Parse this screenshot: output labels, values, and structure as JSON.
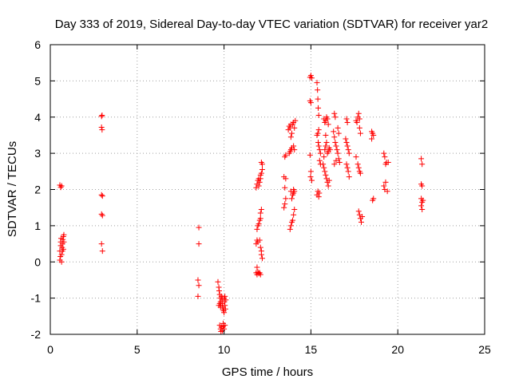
{
  "chart_data": {
    "type": "scatter",
    "title": "Day 333 of 2019, Sidereal Day-to-day VTEC variation (SDTVAR) for receiver yar2",
    "xlabel": "GPS time / hours",
    "ylabel": "SDTVAR / TECUs",
    "xlim": [
      0,
      25
    ],
    "ylim": [
      -2,
      6
    ],
    "xticks": [
      "0",
      "5",
      "10",
      "15",
      "20",
      "25"
    ],
    "yticks": [
      "-2",
      "-1",
      "0",
      "1",
      "2",
      "3",
      "4",
      "5",
      "6"
    ],
    "grid": true,
    "marker": "+",
    "color": "#ff0000",
    "series": [
      {
        "name": "SDTVAR",
        "points": [
          [
            0.55,
            2.12
          ],
          [
            0.6,
            2.06
          ],
          [
            0.65,
            2.1
          ],
          [
            0.55,
            0.05
          ],
          [
            0.55,
            0.3
          ],
          [
            0.6,
            0.45
          ],
          [
            0.6,
            0.55
          ],
          [
            0.62,
            0.65
          ],
          [
            0.65,
            0.0
          ],
          [
            0.65,
            0.2
          ],
          [
            0.68,
            0.4
          ],
          [
            0.7,
            0.5
          ],
          [
            0.72,
            0.62
          ],
          [
            0.75,
            0.7
          ],
          [
            0.75,
            0.35
          ],
          [
            0.78,
            0.55
          ],
          [
            0.78,
            0.75
          ],
          [
            0.58,
            0.15
          ],
          [
            0.7,
            0.3
          ],
          [
            2.95,
            4.02
          ],
          [
            2.98,
            4.05
          ],
          [
            2.95,
            3.72
          ],
          [
            2.98,
            3.65
          ],
          [
            2.95,
            1.85
          ],
          [
            3.0,
            1.82
          ],
          [
            2.95,
            1.32
          ],
          [
            3.0,
            1.28
          ],
          [
            2.95,
            0.5
          ],
          [
            3.0,
            0.3
          ],
          [
            8.55,
            0.95
          ],
          [
            8.55,
            0.5
          ],
          [
            8.5,
            -0.5
          ],
          [
            8.55,
            -0.65
          ],
          [
            8.5,
            -0.95
          ],
          [
            9.65,
            -0.55
          ],
          [
            9.7,
            -0.7
          ],
          [
            9.72,
            -0.8
          ],
          [
            9.75,
            -0.9
          ],
          [
            9.78,
            -1.0
          ],
          [
            9.8,
            -1.1
          ],
          [
            9.82,
            -1.2
          ],
          [
            9.85,
            -0.95
          ],
          [
            9.88,
            -1.05
          ],
          [
            9.9,
            -1.15
          ],
          [
            9.92,
            -1.25
          ],
          [
            9.95,
            -1.3
          ],
          [
            9.98,
            -1.35
          ],
          [
            10.0,
            -1.0
          ],
          [
            10.02,
            -1.1
          ],
          [
            10.05,
            -1.2
          ],
          [
            10.08,
            -1.3
          ],
          [
            9.75,
            -1.15
          ],
          [
            9.8,
            -1.25
          ],
          [
            9.9,
            -1.0
          ],
          [
            10.0,
            -1.4
          ],
          [
            10.05,
            -0.95
          ],
          [
            10.1,
            -1.05
          ],
          [
            9.7,
            -1.2
          ],
          [
            9.75,
            -1.75
          ],
          [
            9.8,
            -1.85
          ],
          [
            9.85,
            -1.8
          ],
          [
            9.9,
            -1.9
          ],
          [
            9.95,
            -1.78
          ],
          [
            10.0,
            -1.85
          ],
          [
            10.05,
            -1.75
          ],
          [
            9.82,
            -1.92
          ],
          [
            9.95,
            -1.7
          ],
          [
            11.85,
            -0.3
          ],
          [
            11.9,
            -0.35
          ],
          [
            11.95,
            -0.28
          ],
          [
            12.0,
            -0.32
          ],
          [
            12.05,
            -0.3
          ],
          [
            12.1,
            -0.35
          ],
          [
            11.9,
            -0.15
          ],
          [
            11.85,
            0.5
          ],
          [
            11.9,
            0.6
          ],
          [
            11.95,
            0.55
          ],
          [
            11.9,
            0.9
          ],
          [
            11.95,
            1.0
          ],
          [
            12.0,
            1.05
          ],
          [
            12.05,
            1.15
          ],
          [
            12.1,
            1.2
          ],
          [
            12.1,
            1.35
          ],
          [
            12.15,
            1.45
          ],
          [
            12.05,
            0.6
          ],
          [
            12.1,
            0.4
          ],
          [
            12.15,
            0.2
          ],
          [
            12.2,
            0.1
          ],
          [
            12.15,
            0.3
          ],
          [
            11.85,
            2.05
          ],
          [
            11.9,
            2.15
          ],
          [
            11.95,
            2.25
          ],
          [
            12.0,
            2.1
          ],
          [
            12.05,
            2.2
          ],
          [
            12.1,
            2.3
          ],
          [
            12.15,
            2.45
          ],
          [
            12.2,
            2.55
          ],
          [
            12.2,
            2.7
          ],
          [
            12.15,
            2.75
          ],
          [
            12.1,
            2.4
          ],
          [
            12.0,
            2.3
          ],
          [
            13.45,
            1.5
          ],
          [
            13.5,
            1.6
          ],
          [
            13.55,
            1.75
          ],
          [
            13.5,
            2.05
          ],
          [
            13.55,
            2.3
          ],
          [
            13.45,
            2.35
          ],
          [
            13.5,
            2.9
          ],
          [
            13.55,
            2.95
          ],
          [
            13.8,
            0.9
          ],
          [
            13.85,
            1.0
          ],
          [
            13.9,
            1.1
          ],
          [
            13.95,
            1.15
          ],
          [
            14.0,
            1.3
          ],
          [
            14.05,
            1.45
          ],
          [
            13.9,
            1.75
          ],
          [
            13.95,
            1.85
          ],
          [
            14.0,
            1.9
          ],
          [
            14.05,
            1.95
          ],
          [
            13.85,
            1.95
          ],
          [
            14.0,
            2.0
          ],
          [
            13.75,
            3.0
          ],
          [
            13.8,
            3.05
          ],
          [
            13.85,
            3.1
          ],
          [
            13.9,
            3.15
          ],
          [
            14.0,
            3.2
          ],
          [
            14.05,
            3.1
          ],
          [
            13.7,
            3.65
          ],
          [
            13.75,
            3.75
          ],
          [
            13.8,
            3.7
          ],
          [
            13.85,
            3.8
          ],
          [
            13.9,
            3.55
          ],
          [
            13.95,
            3.8
          ],
          [
            14.0,
            3.85
          ],
          [
            14.05,
            3.7
          ],
          [
            14.1,
            3.9
          ],
          [
            13.85,
            3.45
          ],
          [
            14.95,
            5.1
          ],
          [
            15.0,
            5.15
          ],
          [
            15.05,
            5.08
          ],
          [
            14.95,
            4.45
          ],
          [
            15.0,
            4.4
          ],
          [
            14.95,
            2.95
          ],
          [
            15.0,
            2.5
          ],
          [
            15.05,
            2.25
          ],
          [
            14.98,
            2.35
          ],
          [
            15.35,
            4.95
          ],
          [
            15.38,
            4.75
          ],
          [
            15.4,
            4.5
          ],
          [
            15.42,
            4.25
          ],
          [
            15.45,
            4.05
          ],
          [
            15.35,
            3.5
          ],
          [
            15.4,
            3.55
          ],
          [
            15.42,
            3.3
          ],
          [
            15.45,
            3.2
          ],
          [
            15.5,
            3.1
          ],
          [
            15.55,
            3.0
          ],
          [
            15.45,
            3.65
          ],
          [
            15.5,
            2.8
          ],
          [
            15.55,
            2.7
          ],
          [
            15.35,
            1.85
          ],
          [
            15.4,
            1.95
          ],
          [
            15.45,
            1.8
          ],
          [
            15.48,
            1.9
          ],
          [
            15.75,
            3.95
          ],
          [
            15.8,
            3.85
          ],
          [
            15.85,
            3.9
          ],
          [
            15.9,
            4.0
          ],
          [
            15.95,
            3.95
          ],
          [
            16.0,
            3.8
          ],
          [
            15.7,
            2.7
          ],
          [
            15.75,
            2.6
          ],
          [
            15.8,
            2.5
          ],
          [
            15.85,
            2.4
          ],
          [
            15.9,
            2.3
          ],
          [
            15.95,
            2.2
          ],
          [
            16.0,
            2.1
          ],
          [
            16.05,
            2.25
          ],
          [
            15.8,
            3.1
          ],
          [
            15.85,
            3.2
          ],
          [
            15.9,
            3.3
          ],
          [
            15.95,
            3.0
          ],
          [
            16.0,
            3.05
          ],
          [
            16.05,
            3.15
          ],
          [
            16.1,
            3.1
          ],
          [
            15.75,
            2.9
          ],
          [
            15.85,
            3.5
          ],
          [
            16.35,
            4.1
          ],
          [
            16.4,
            4.0
          ],
          [
            16.3,
            3.6
          ],
          [
            16.35,
            3.45
          ],
          [
            16.4,
            3.3
          ],
          [
            16.45,
            3.2
          ],
          [
            16.5,
            3.1
          ],
          [
            16.55,
            3.0
          ],
          [
            16.6,
            2.85
          ],
          [
            16.55,
            3.7
          ],
          [
            16.6,
            3.55
          ],
          [
            16.65,
            2.75
          ],
          [
            16.35,
            2.7
          ],
          [
            16.45,
            2.8
          ],
          [
            17.05,
            3.95
          ],
          [
            17.1,
            3.85
          ],
          [
            17.0,
            3.4
          ],
          [
            17.05,
            3.3
          ],
          [
            17.1,
            3.2
          ],
          [
            17.15,
            3.1
          ],
          [
            17.2,
            3.0
          ],
          [
            17.1,
            2.6
          ],
          [
            17.15,
            2.5
          ],
          [
            17.2,
            2.35
          ],
          [
            17.05,
            2.7
          ],
          [
            17.6,
            3.9
          ],
          [
            17.65,
            3.85
          ],
          [
            17.7,
            4.0
          ],
          [
            17.75,
            4.1
          ],
          [
            17.8,
            3.7
          ],
          [
            17.85,
            3.55
          ],
          [
            17.8,
            3.95
          ],
          [
            17.6,
            2.9
          ],
          [
            17.7,
            2.7
          ],
          [
            17.75,
            2.6
          ],
          [
            17.8,
            2.5
          ],
          [
            17.85,
            2.45
          ],
          [
            17.75,
            1.4
          ],
          [
            17.8,
            1.3
          ],
          [
            17.85,
            1.2
          ],
          [
            17.9,
            1.1
          ],
          [
            17.95,
            1.25
          ],
          [
            18.5,
            3.6
          ],
          [
            18.55,
            3.55
          ],
          [
            18.6,
            3.5
          ],
          [
            18.5,
            3.4
          ],
          [
            18.55,
            1.7
          ],
          [
            18.6,
            1.75
          ],
          [
            19.2,
            3.0
          ],
          [
            19.25,
            2.9
          ],
          [
            19.3,
            2.7
          ],
          [
            19.35,
            2.75
          ],
          [
            19.2,
            2.1
          ],
          [
            19.25,
            2.0
          ],
          [
            19.3,
            2.2
          ],
          [
            19.4,
            1.95
          ],
          [
            19.45,
            2.75
          ],
          [
            21.35,
            2.85
          ],
          [
            21.4,
            2.7
          ],
          [
            21.35,
            2.15
          ],
          [
            21.4,
            2.1
          ],
          [
            21.35,
            1.75
          ],
          [
            21.4,
            1.65
          ],
          [
            21.35,
            1.55
          ],
          [
            21.4,
            1.45
          ],
          [
            21.45,
            1.7
          ]
        ]
      }
    ]
  }
}
